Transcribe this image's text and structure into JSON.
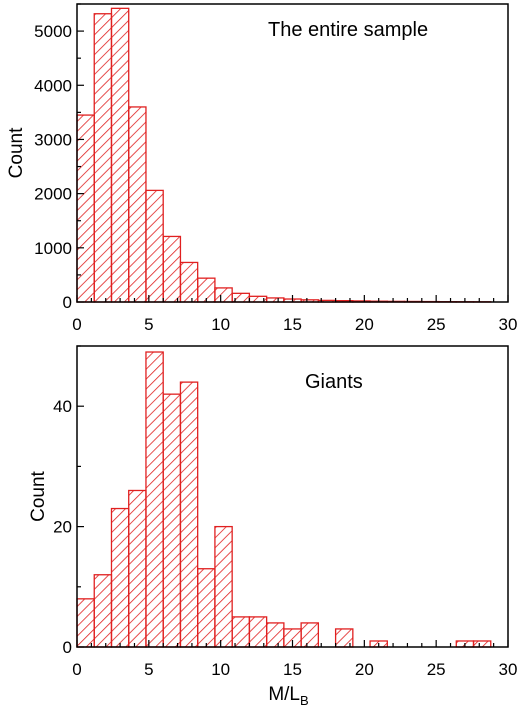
{
  "colors": {
    "bar_stroke": "#e02020",
    "bar_hatch": "#e02020",
    "axis": "#000000"
  },
  "chart_data": [
    {
      "type": "bar",
      "annotation": "The entire sample",
      "xlabel": "",
      "ylabel": "Count",
      "xlim": [
        0,
        30
      ],
      "ylim": [
        0,
        5500
      ],
      "bin_width": 1.2,
      "bin_start": 0,
      "values": [
        3450,
        5320,
        5420,
        3600,
        2060,
        1210,
        730,
        440,
        260,
        160,
        105,
        75,
        55,
        40,
        30,
        25,
        20,
        15,
        12,
        10,
        8,
        6,
        5,
        4
      ],
      "x_ticks": [
        "0",
        "5",
        "10",
        "15",
        "20",
        "25",
        "30"
      ],
      "y_ticks": [
        "0",
        "1000",
        "2000",
        "3000",
        "4000",
        "5000"
      ],
      "y_tick_values": [
        0,
        1000,
        2000,
        3000,
        4000,
        5000
      ],
      "grid": false
    },
    {
      "type": "bar",
      "annotation": "Giants",
      "xlabel": "M/L",
      "xlabel_sub": "B",
      "ylabel": "Count",
      "xlim": [
        0,
        30
      ],
      "ylim": [
        0,
        50
      ],
      "bin_width": 1.2,
      "bin_start": 0,
      "values": [
        8,
        12,
        23,
        26,
        49,
        42,
        44,
        13,
        20,
        5,
        5,
        4,
        3,
        4,
        0,
        3,
        0,
        1,
        0,
        0,
        0,
        0,
        1,
        1
      ],
      "x_ticks": [
        "0",
        "5",
        "10",
        "15",
        "20",
        "25",
        "30"
      ],
      "y_ticks": [
        "0",
        "20",
        "40"
      ],
      "y_tick_values": [
        0,
        20,
        40
      ],
      "grid": false
    }
  ]
}
